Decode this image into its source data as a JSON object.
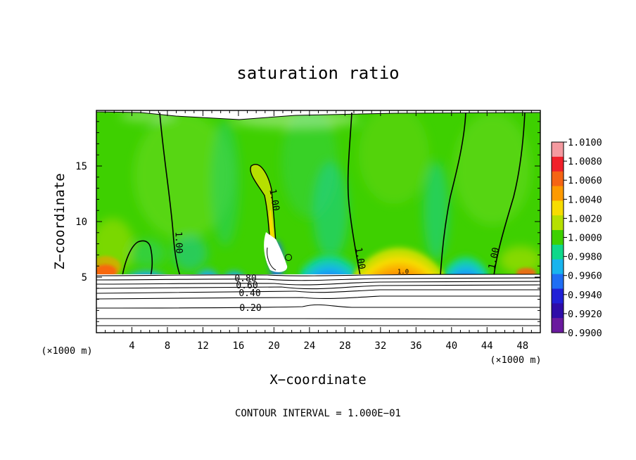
{
  "chart_data": {
    "type": "heatmap",
    "title": "saturation ratio",
    "xlabel": "X−coordinate",
    "ylabel": "Z−coordinate",
    "x_unit": "(×1000 m)",
    "y_unit": "(×1000 m)",
    "xlim": [
      0,
      50
    ],
    "ylim": [
      0,
      20
    ],
    "x_ticks": [
      "4",
      "8",
      "12",
      "16",
      "20",
      "24",
      "28",
      "32",
      "36",
      "40",
      "44",
      "48"
    ],
    "y_ticks": [
      "5",
      "10",
      "15"
    ],
    "colorbar_range": [
      0.99,
      1.01
    ],
    "colorbar_labels": [
      "1.0100",
      "1.0080",
      "1.0060",
      "1.0040",
      "1.0020",
      "1.0000",
      "0.9980",
      "0.9960",
      "0.9940",
      "0.9920",
      "0.9900"
    ],
    "colorbar_colors": [
      "#f49aa0",
      "#f0202a",
      "#f56414",
      "#fd9a00",
      "#f7dc00",
      "#b6e000",
      "#3ed000",
      "#0fd88a",
      "#18b4ee",
      "#1f6ef4",
      "#2020d6",
      "#2e0ca8",
      "#6a1a9e"
    ],
    "surface_height": 5.2,
    "contour_labels": [
      "1.00",
      "1.00",
      "1.00",
      "1.00",
      "0.20",
      "0.40",
      "0.60",
      "0.80",
      "1.0"
    ],
    "footer": "CONTOUR INTERVAL = 1.000E−01"
  }
}
